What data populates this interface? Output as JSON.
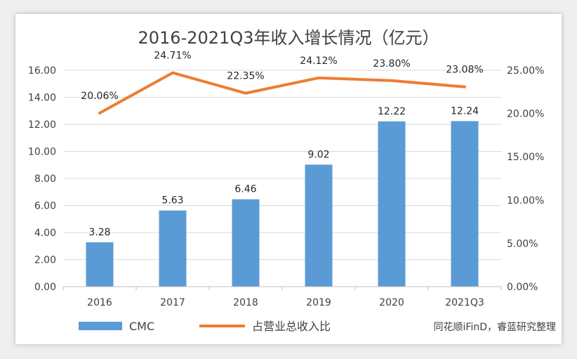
{
  "chart_data": {
    "type": "bar+line",
    "title": "2016-2021Q3年收入增长情况（亿元）",
    "categories": [
      "2016",
      "2017",
      "2018",
      "2019",
      "2020",
      "2021Q3"
    ],
    "series": [
      {
        "name": "CMC",
        "type": "bar",
        "axis": "left",
        "values": [
          3.28,
          5.63,
          6.46,
          9.02,
          12.22,
          12.24
        ],
        "labels": [
          "3.28",
          "5.63",
          "6.46",
          "9.02",
          "12.22",
          "12.24"
        ],
        "color": "#5b9bd5"
      },
      {
        "name": "占营业总收入比",
        "type": "line",
        "axis": "right",
        "values": [
          20.06,
          24.71,
          22.35,
          24.12,
          23.8,
          23.08
        ],
        "labels": [
          "20.06%",
          "24.71%",
          "22.35%",
          "24.12%",
          "23.80%",
          "23.08%"
        ],
        "color": "#ed7d31"
      }
    ],
    "left_axis": {
      "ylim": [
        0,
        16
      ],
      "ticks": [
        0,
        2,
        4,
        6,
        8,
        10,
        12,
        14,
        16
      ],
      "tick_labels": [
        "0.00",
        "2.00",
        "4.00",
        "6.00",
        "8.00",
        "10.00",
        "12.00",
        "14.00",
        "16.00"
      ]
    },
    "right_axis": {
      "ylim": [
        0,
        25
      ],
      "ticks": [
        0,
        5,
        10,
        15,
        20,
        25
      ],
      "tick_labels": [
        "0.00%",
        "5.00%",
        "10.00%",
        "15.00%",
        "20.00%",
        "25.00%"
      ]
    },
    "grid": true,
    "legend": "bottom-left",
    "source": "同花顺iFinD，睿蓝研究整理"
  }
}
